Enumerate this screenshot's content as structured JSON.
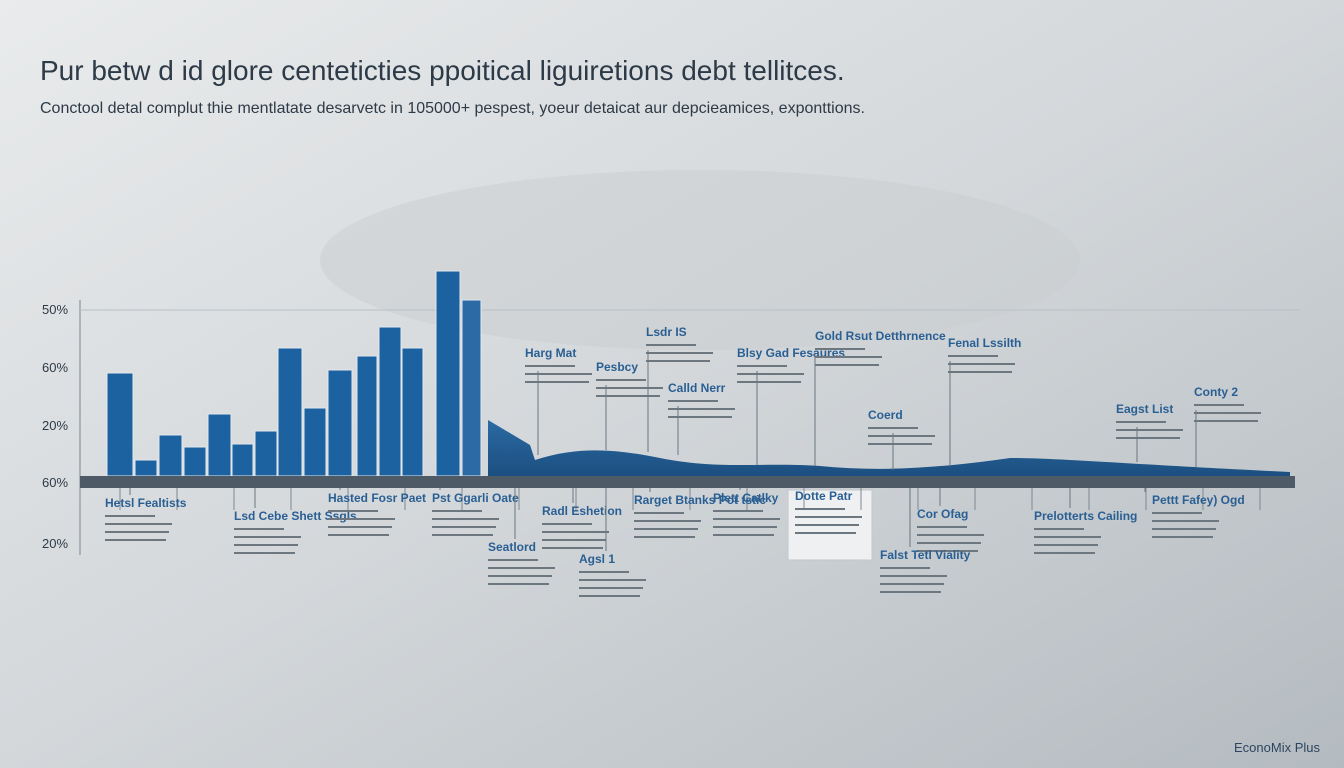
{
  "header": {
    "title": "Pur betw d id glore centeticties ppoitical liguiretions debt tellitces.",
    "subtitle": "Conctool detal complut thie mentlatate desarvetc in 105000+ pespest, yoeur detaicat aur depcieamices, exponttions."
  },
  "axis_labels": [
    "50%",
    "60%",
    "20%",
    "60%",
    "20%"
  ],
  "top_annotations": [
    "Harg Mat",
    "Pesbcy",
    "Lsdr IS",
    "Calld Nerr",
    "Blsy Gad Fesaures",
    "Gold Rsut Detthrnence",
    "Coerd",
    "Fenal Lssilth",
    "Eagst List",
    "Conty 2"
  ],
  "bottom_annotations": [
    "Hetsl Fealtists",
    "Lsd Cebe Shett Ssgls",
    "Hasted Fosr Paet",
    "Pst Ggarli Oate",
    "Seatlord",
    "Radl Eshetion",
    "Agsl 1",
    "Rarget Btanks Pot tstic",
    "Plett Catlky",
    "Dotte Patr",
    "Cor Ofag",
    "Falst Tetl Viality",
    "Prelotterts Cailing",
    "Pettt Fafey) Ogd"
  ],
  "footer": {
    "brand": "EconoMix Plus"
  }
}
